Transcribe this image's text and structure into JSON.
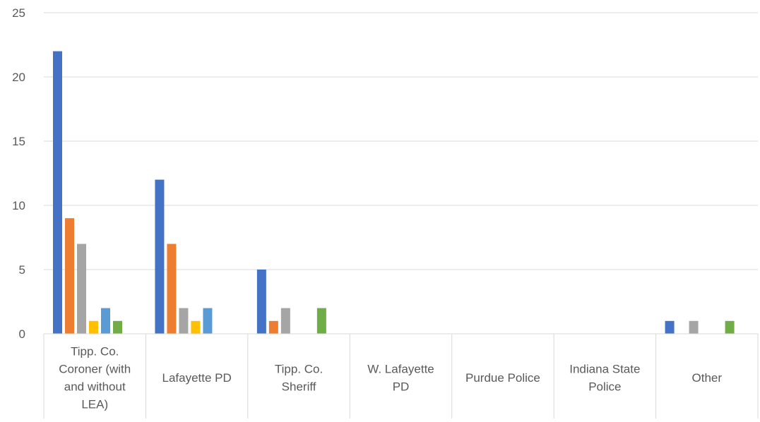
{
  "chart_data": {
    "type": "bar",
    "title": "",
    "xlabel": "",
    "ylabel": "",
    "ylim": [
      0,
      25
    ],
    "yticks": [
      0,
      5,
      10,
      15,
      20,
      25
    ],
    "grid": true,
    "legend": "none",
    "categories": [
      [
        "Tipp. Co.",
        "Coroner (with",
        "and without",
        "LEA)"
      ],
      [
        "Lafayette PD"
      ],
      [
        "Tipp. Co.",
        "Sheriff"
      ],
      [
        "W. Lafayette",
        "PD"
      ],
      [
        "Purdue Police"
      ],
      [
        "Indiana State",
        "Police"
      ],
      [
        "Other"
      ]
    ],
    "series": [
      {
        "color": "#4472C4",
        "values": [
          22,
          12,
          5,
          0,
          0,
          0,
          1
        ]
      },
      {
        "color": "#ED7D31",
        "values": [
          9,
          7,
          1,
          0,
          0,
          0,
          0
        ]
      },
      {
        "color": "#A5A5A5",
        "values": [
          7,
          2,
          2,
          0,
          0,
          0,
          1
        ]
      },
      {
        "color": "#FFC000",
        "values": [
          1,
          1,
          0,
          0,
          0,
          0,
          0
        ]
      },
      {
        "color": "#5B9BD5",
        "values": [
          2,
          2,
          0,
          0,
          0,
          0,
          0
        ]
      },
      {
        "color": "#70AD47",
        "values": [
          1,
          0,
          2,
          0,
          0,
          0,
          1
        ]
      }
    ]
  }
}
